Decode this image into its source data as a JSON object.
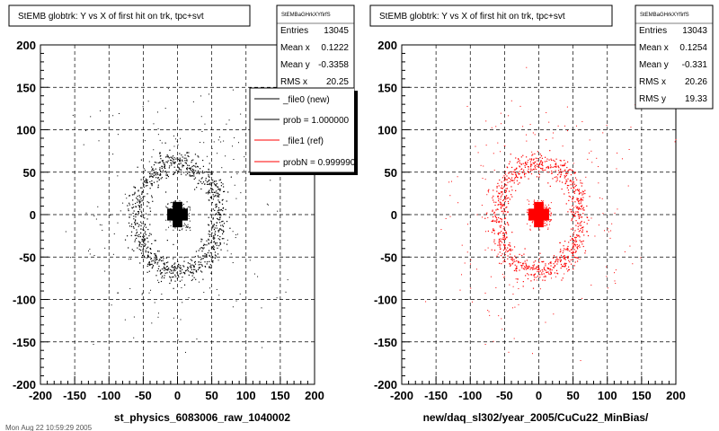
{
  "chart_data": [
    {
      "type": "scatter",
      "title": "StEMB globtrk: Y vs X of first hit on trk, tpc+svt",
      "xlabel": "st_physics_6083006_raw_1040002",
      "ylabel": "",
      "xlim": [
        -200,
        200
      ],
      "ylim": [
        -200,
        200
      ],
      "grid": true,
      "x_ticks": [
        "-200",
        "-150",
        "-100",
        "-50",
        "0",
        "50",
        "100",
        "150",
        "200"
      ],
      "y_ticks": [
        "200",
        "150",
        "100",
        "50",
        "0",
        "-50",
        "-100",
        "-150",
        "-200"
      ],
      "point_color": "#000000",
      "stats": {
        "name": "StEMBaGHrkXYfirfS",
        "rows": [
          {
            "label": "Entries",
            "value": "13045"
          },
          {
            "label": "Mean x",
            "value": "0.1222"
          },
          {
            "label": "Mean y",
            "value": "-0.3358"
          },
          {
            "label": "RMS x",
            "value": "20.25"
          }
        ]
      },
      "legend": {
        "placement": "top-right",
        "entries": [
          {
            "label": "_file0 (new)",
            "color": "#000000"
          },
          {
            "label": "prob = 1.000000",
            "color": "#000000"
          },
          {
            "label": "_file1 (ref)",
            "color": "#ff0000"
          },
          {
            "label": "probN = 0.999990",
            "color": "#ff0000"
          }
        ]
      },
      "distribution": {
        "core_half_width": 15,
        "core_cross_arm_half_width": 7,
        "ring_radius_x": 60,
        "ring_radius_y": 65,
        "ring_thickness": 12,
        "ring_points": 950,
        "outer_points": 160
      }
    },
    {
      "type": "scatter",
      "title": "StEMB globtrk: Y vs X of first hit on trk, tpc+svt",
      "xlabel": "new/daq_sl302/year_2005/CuCu22_MinBias/",
      "ylabel": "",
      "xlim": [
        -200,
        200
      ],
      "ylim": [
        -200,
        200
      ],
      "grid": true,
      "x_ticks": [
        "-200",
        "-150",
        "-100",
        "-50",
        "0",
        "50",
        "100",
        "150",
        "200"
      ],
      "y_ticks": [
        "200",
        "150",
        "100",
        "50",
        "0",
        "-50",
        "-100",
        "-150",
        "-200"
      ],
      "point_color": "#ff0000",
      "stats": {
        "name": "StEMBaGHrkXYfirfS",
        "rows": [
          {
            "label": "Entries",
            "value": "13043"
          },
          {
            "label": "Mean x",
            "value": "0.1254"
          },
          {
            "label": "Mean y",
            "value": "-0.331"
          },
          {
            "label": "RMS x",
            "value": "20.26"
          },
          {
            "label": "RMS y",
            "value": "19.33"
          }
        ]
      },
      "distribution": {
        "core_half_width": 15,
        "core_cross_arm_half_width": 7,
        "ring_radius_x": 60,
        "ring_radius_y": 65,
        "ring_thickness": 12,
        "ring_points": 950,
        "outer_points": 160
      }
    }
  ],
  "footer": {
    "left_fragment": "Mon Aug 22 10:59:29 2005"
  }
}
